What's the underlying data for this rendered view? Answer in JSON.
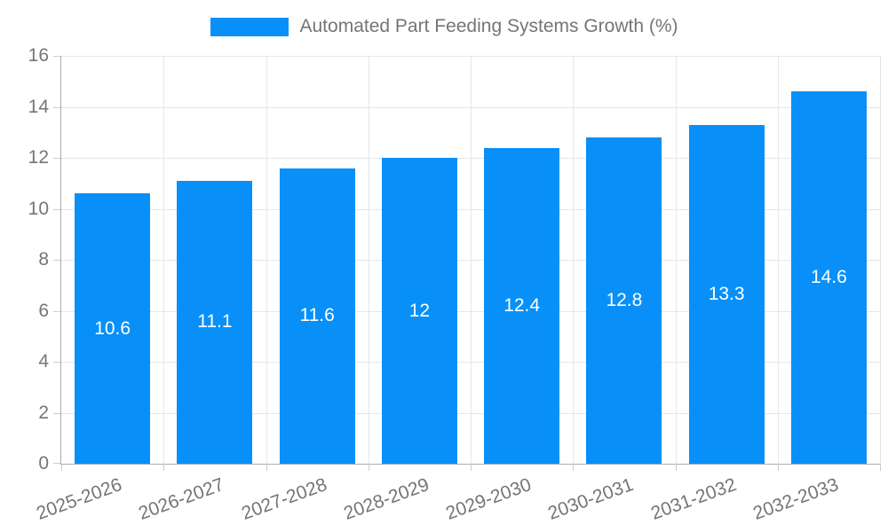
{
  "legend": {
    "label": "Automated Part Feeding Systems Growth (%)"
  },
  "chart_data": {
    "type": "bar",
    "categories": [
      "2025-2026",
      "2026-2027",
      "2027-2028",
      "2028-2029",
      "2029-2030",
      "2030-2031",
      "2031-2032",
      "2032-2033"
    ],
    "values": [
      10.6,
      11.1,
      11.6,
      12,
      12.4,
      12.8,
      13.3,
      14.6
    ],
    "series_name": "Automated Part Feeding Systems Growth (%)",
    "title": "",
    "xlabel": "",
    "ylabel": "",
    "ylim": [
      0,
      16
    ],
    "ytick_step": 2,
    "yticks": [
      0,
      2,
      4,
      6,
      8,
      10,
      12,
      14,
      16
    ],
    "grid": true,
    "legend_position": "top",
    "x_label_rotation_deg": -20,
    "colors": {
      "bar": "#0890f8",
      "value_label": "#ffffff",
      "axis_label": "#757575",
      "grid_line": "#e6e6e6",
      "axis_line": "#ababab",
      "tick": "#cccccc"
    }
  }
}
